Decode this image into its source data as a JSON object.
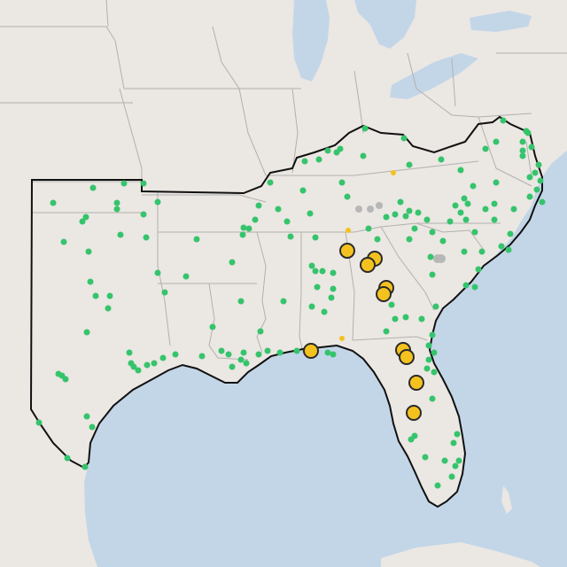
{
  "colors": {
    "water": "#c3d6e8",
    "land": "#ebe7e3",
    "state_border": "#b2b0ae",
    "region_outline": "#111111",
    "green_marker": "#35c46c",
    "yellow_marker": "#f4c21f",
    "gray_marker": "#b7b7b7",
    "marker_outline": "#2a2a2a"
  },
  "legend": [],
  "markers": {
    "description_key": "marker kinds",
    "kinds": [
      "green-site-marker",
      "yellow-large-marker",
      "yellow-small-marker",
      "gray-site-marker"
    ]
  }
}
